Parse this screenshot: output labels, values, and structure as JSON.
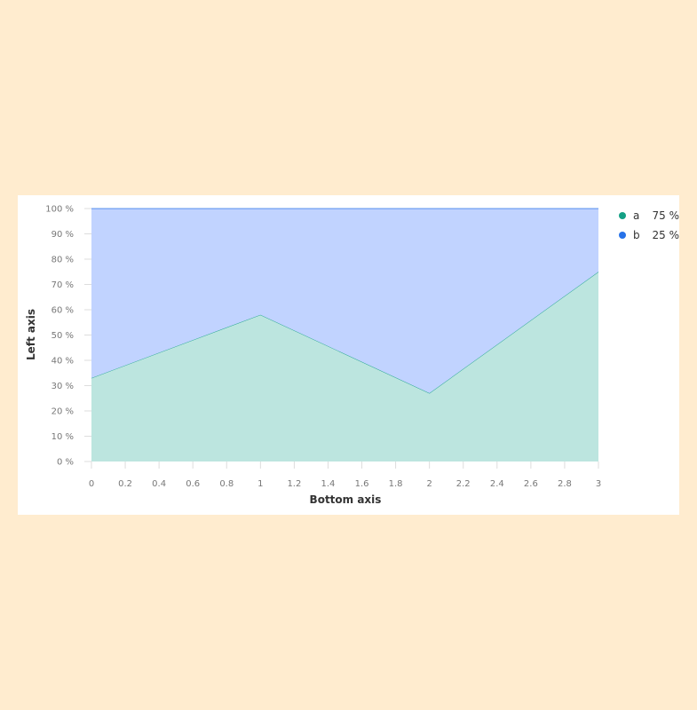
{
  "chart_data": {
    "type": "area",
    "stacked": true,
    "percent": true,
    "xlabel": "Bottom axis",
    "ylabel": "Left axis",
    "xlim": [
      0,
      3
    ],
    "ylim": [
      0,
      100
    ],
    "x_ticks": [
      "0",
      "0.2",
      "0.4",
      "0.6",
      "0.8",
      "1",
      "1.2",
      "1.4",
      "1.6",
      "1.8",
      "2",
      "2.2",
      "2.4",
      "2.6",
      "2.8",
      "3"
    ],
    "y_ticks": [
      "0 %",
      "10 %",
      "20 %",
      "30 %",
      "40 %",
      "50 %",
      "60 %",
      "70 %",
      "80 %",
      "90 %",
      "100 %"
    ],
    "x": [
      0,
      1,
      2,
      3
    ],
    "series": [
      {
        "name": "a",
        "values": [
          33,
          58,
          27,
          75
        ],
        "color": "#14a085",
        "fill": "#bce5df"
      },
      {
        "name": "b",
        "values": [
          67,
          42,
          73,
          25
        ],
        "color": "#2772e8",
        "fill": "#c1d3ff"
      }
    ],
    "legend": {
      "position": "top-right",
      "items": [
        {
          "name": "a",
          "value": "75 %"
        },
        {
          "name": "b",
          "value": "25 %"
        }
      ]
    },
    "grid": false
  }
}
